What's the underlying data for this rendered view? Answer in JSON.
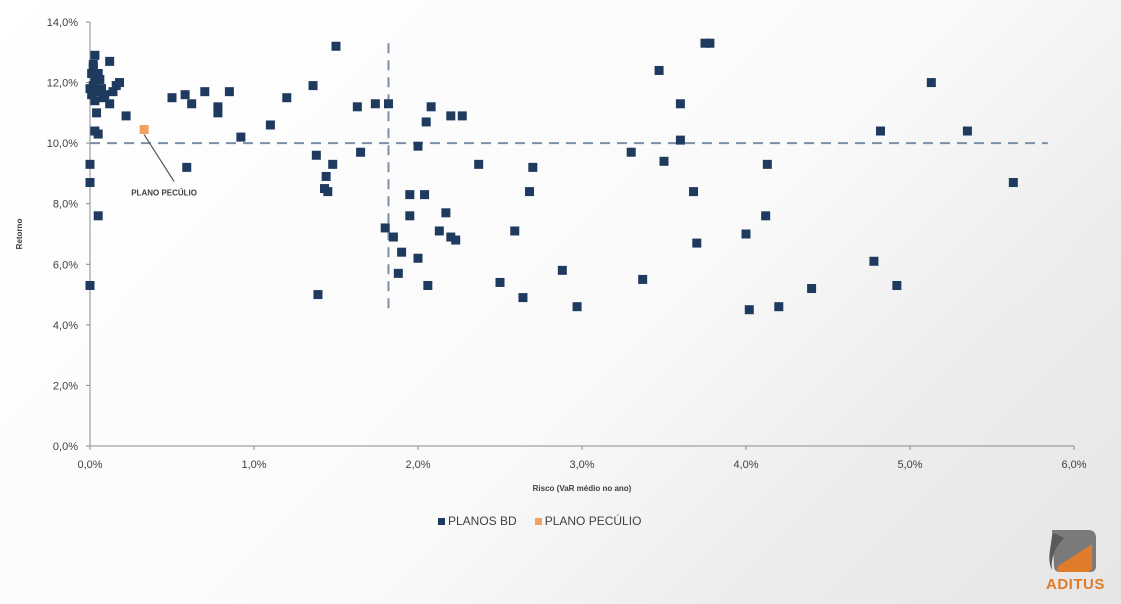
{
  "chart_data": {
    "type": "scatter",
    "xlabel": "Risco (VaR médio no ano)",
    "ylabel": "Retorno",
    "xlim": [
      0,
      6
    ],
    "ylim": [
      0,
      14
    ],
    "x_ticks": [
      "0,0%",
      "1,0%",
      "2,0%",
      "3,0%",
      "4,0%",
      "5,0%",
      "6,0%"
    ],
    "y_ticks": [
      "0,0%",
      "2,0%",
      "4,0%",
      "6,0%",
      "8,0%",
      "10,0%",
      "12,0%",
      "14,0%"
    ],
    "grid": false,
    "legend_position": "bottom",
    "reference_lines": {
      "x": 1.82,
      "y": 10.0
    },
    "annotation": {
      "text": "PLANO PECÚLIO",
      "x": 0.33,
      "y": 10.45
    },
    "series": [
      {
        "name": "PLANOS BD",
        "color": "#1f3a5f",
        "points": [
          [
            0.0,
            11.8
          ],
          [
            0.01,
            12.3
          ],
          [
            0.02,
            12.6
          ],
          [
            0.03,
            12.9
          ],
          [
            0.01,
            11.6
          ],
          [
            0.02,
            11.9
          ],
          [
            0.03,
            12.1
          ],
          [
            0.04,
            11.7
          ],
          [
            0.05,
            12.3
          ],
          [
            0.02,
            12.5
          ],
          [
            0.06,
            12.1
          ],
          [
            0.07,
            11.8
          ],
          [
            0.03,
            11.4
          ],
          [
            0.04,
            11.0
          ],
          [
            0.08,
            11.5
          ],
          [
            0.05,
            10.3
          ],
          [
            0.03,
            10.4
          ],
          [
            0.09,
            11.6
          ],
          [
            0.12,
            11.3
          ],
          [
            0.14,
            11.7
          ],
          [
            0.16,
            11.9
          ],
          [
            0.18,
            12.0
          ],
          [
            0.12,
            12.7
          ],
          [
            0.22,
            10.9
          ],
          [
            0.0,
            9.3
          ],
          [
            0.0,
            8.7
          ],
          [
            0.05,
            7.6
          ],
          [
            0.0,
            5.3
          ],
          [
            0.5,
            11.5
          ],
          [
            0.58,
            11.6
          ],
          [
            0.62,
            11.3
          ],
          [
            0.7,
            11.7
          ],
          [
            0.78,
            11.2
          ],
          [
            0.78,
            11.0
          ],
          [
            0.85,
            11.7
          ],
          [
            0.59,
            9.2
          ],
          [
            0.92,
            10.2
          ],
          [
            1.1,
            10.6
          ],
          [
            1.2,
            11.5
          ],
          [
            1.36,
            11.9
          ],
          [
            1.5,
            13.2
          ],
          [
            1.63,
            11.2
          ],
          [
            1.74,
            11.3
          ],
          [
            1.82,
            11.3
          ],
          [
            1.65,
            9.7
          ],
          [
            1.38,
            9.6
          ],
          [
            1.48,
            9.3
          ],
          [
            1.44,
            8.9
          ],
          [
            1.43,
            8.5
          ],
          [
            1.45,
            8.4
          ],
          [
            1.39,
            5.0
          ],
          [
            1.8,
            7.2
          ],
          [
            1.85,
            6.9
          ],
          [
            1.9,
            6.4
          ],
          [
            1.88,
            5.7
          ],
          [
            1.95,
            8.3
          ],
          [
            1.95,
            7.6
          ],
          [
            2.0,
            9.9
          ],
          [
            2.05,
            10.7
          ],
          [
            2.08,
            11.2
          ],
          [
            2.2,
            10.9
          ],
          [
            2.27,
            10.9
          ],
          [
            2.04,
            8.3
          ],
          [
            2.0,
            6.2
          ],
          [
            2.06,
            5.3
          ],
          [
            2.13,
            7.1
          ],
          [
            2.17,
            7.7
          ],
          [
            2.2,
            6.9
          ],
          [
            2.23,
            6.8
          ],
          [
            2.37,
            9.3
          ],
          [
            2.5,
            5.4
          ],
          [
            2.59,
            7.1
          ],
          [
            2.64,
            4.9
          ],
          [
            2.68,
            8.4
          ],
          [
            2.7,
            9.2
          ],
          [
            2.88,
            5.8
          ],
          [
            2.97,
            4.6
          ],
          [
            3.3,
            9.7
          ],
          [
            3.37,
            5.5
          ],
          [
            3.47,
            12.4
          ],
          [
            3.5,
            9.4
          ],
          [
            3.6,
            11.3
          ],
          [
            3.6,
            10.1
          ],
          [
            3.68,
            8.4
          ],
          [
            3.7,
            6.7
          ],
          [
            3.75,
            13.3
          ],
          [
            3.78,
            13.3
          ],
          [
            4.0,
            7.0
          ],
          [
            4.02,
            4.5
          ],
          [
            4.12,
            7.6
          ],
          [
            4.13,
            9.3
          ],
          [
            4.2,
            4.6
          ],
          [
            4.4,
            5.2
          ],
          [
            4.78,
            6.1
          ],
          [
            4.82,
            10.4
          ],
          [
            4.92,
            5.3
          ],
          [
            5.13,
            12.0
          ],
          [
            5.35,
            10.4
          ],
          [
            5.63,
            8.7
          ]
        ]
      },
      {
        "name": "PLANO PECÚLIO",
        "color": "#f0a060",
        "points": [
          [
            0.33,
            10.45
          ]
        ]
      }
    ]
  },
  "branding": {
    "name": "ADITUS"
  }
}
